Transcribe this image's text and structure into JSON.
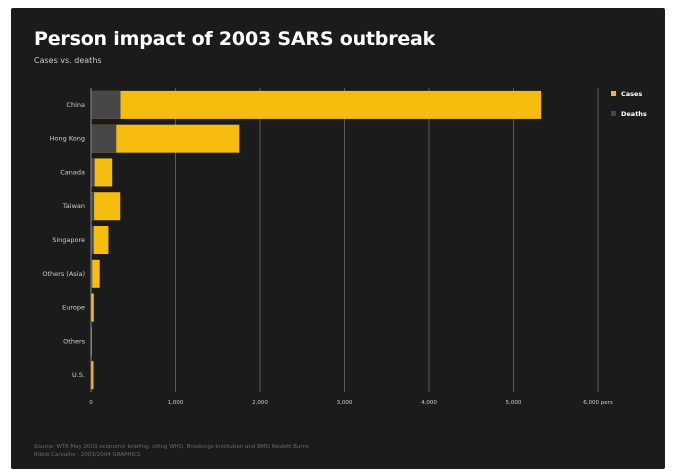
{
  "title": "Person impact of 2003 SARS outbreak",
  "subtitle": "Cases vs. deaths",
  "source": {
    "line1": "Source: WTA May 2003 economic briefing, citing WHO, Brookings Institution and BMO Nesbitt Burns",
    "line2": "Ribidi Carvalho · 2003/2004 GRAPHICS"
  },
  "colors": {
    "cases": "#f6bd0f",
    "deaths": "#474747",
    "grid": "#5a5a5a",
    "background": "#1b1b1b"
  },
  "chart_data": {
    "type": "bar",
    "orientation": "horizontal",
    "title": "Person impact of 2003 SARS outbreak",
    "subtitle": "Cases vs. deaths",
    "categories": [
      "China",
      "Hong Kong",
      "Canada",
      "Taiwan",
      "Singapore",
      "Others (Asia)",
      "Europe",
      "Others",
      "U.S."
    ],
    "series": [
      {
        "name": "Cases",
        "values": [
          5327,
          1755,
          251,
          346,
          206,
          103,
          33,
          8,
          29
        ]
      },
      {
        "name": "Deaths",
        "values": [
          349,
          299,
          43,
          37,
          32,
          15,
          3,
          1,
          0
        ]
      }
    ],
    "xlim": [
      0,
      6000
    ],
    "xticks": [
      0,
      1000,
      2000,
      3000,
      4000,
      5000,
      6000
    ],
    "xtick_labels": [
      "0",
      "1,000",
      "2,000",
      "3,000",
      "4,000",
      "5,000",
      "6,000 pers"
    ],
    "grid": true,
    "legend": "top-right"
  }
}
